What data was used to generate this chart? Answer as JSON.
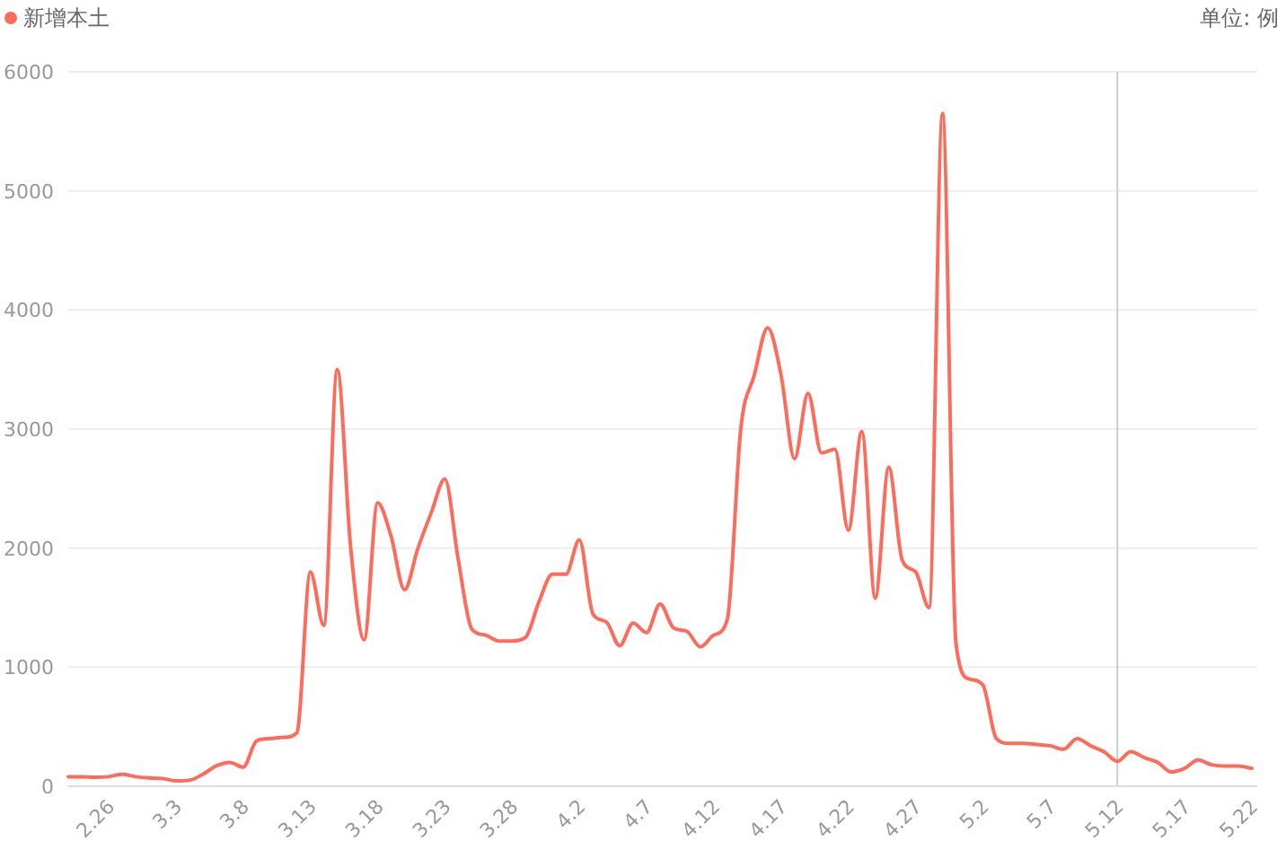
{
  "chart_data": {
    "type": "line",
    "annotations": [
      "单位: 例"
    ],
    "categories": [
      null,
      null,
      null,
      "2.26",
      null,
      null,
      null,
      null,
      "3.3",
      null,
      null,
      null,
      null,
      "3.8",
      null,
      null,
      null,
      null,
      "3.13",
      null,
      null,
      null,
      null,
      "3.18",
      null,
      null,
      null,
      null,
      "3.23",
      null,
      null,
      null,
      null,
      "3.28",
      null,
      null,
      null,
      null,
      "4.2",
      null,
      null,
      null,
      null,
      "4.7",
      null,
      null,
      null,
      null,
      "4.12",
      null,
      null,
      null,
      null,
      "4.17",
      null,
      null,
      null,
      null,
      "4.22",
      null,
      null,
      null,
      null,
      "4.27",
      null,
      null,
      null,
      null,
      "5.2",
      null,
      null,
      null,
      null,
      "5.7",
      null,
      null,
      null,
      null,
      "5.12",
      null,
      null,
      null,
      null,
      "5.17",
      null,
      null,
      null,
      null,
      "5.22"
    ],
    "series": [
      {
        "name": "新增本土",
        "color": "#ff6b5a",
        "values": [
          80,
          80,
          75,
          80,
          100,
          80,
          70,
          65,
          45,
          50,
          100,
          170,
          200,
          160,
          380,
          400,
          410,
          450,
          1800,
          1350,
          3500,
          2000,
          1230,
          2380,
          2100,
          1650,
          2000,
          2300,
          2580,
          1900,
          1320,
          1270,
          1220,
          1220,
          1250,
          1550,
          1780,
          1780,
          2070,
          1450,
          1380,
          1180,
          1370,
          1290,
          1530,
          1330,
          1300,
          1170,
          1270,
          1400,
          3000,
          3450,
          3850,
          3450,
          2750,
          3300,
          2800,
          2830,
          2150,
          2980,
          1580,
          2680,
          1900,
          1800,
          1500,
          5650,
          1200,
          900,
          850,
          400,
          360,
          360,
          350,
          340,
          310,
          400,
          340,
          290,
          210,
          290,
          240,
          200,
          120,
          150,
          220,
          180,
          170,
          170,
          150
        ]
      }
    ],
    "ylim": [
      0,
      6000
    ],
    "yticks": [
      0,
      1000,
      2000,
      3000,
      4000,
      5000,
      6000
    ],
    "grid": "y",
    "legend": "top left",
    "ref_lines": [
      {
        "axis": "x",
        "value": "5.12",
        "color": "#cccccc"
      }
    ]
  }
}
